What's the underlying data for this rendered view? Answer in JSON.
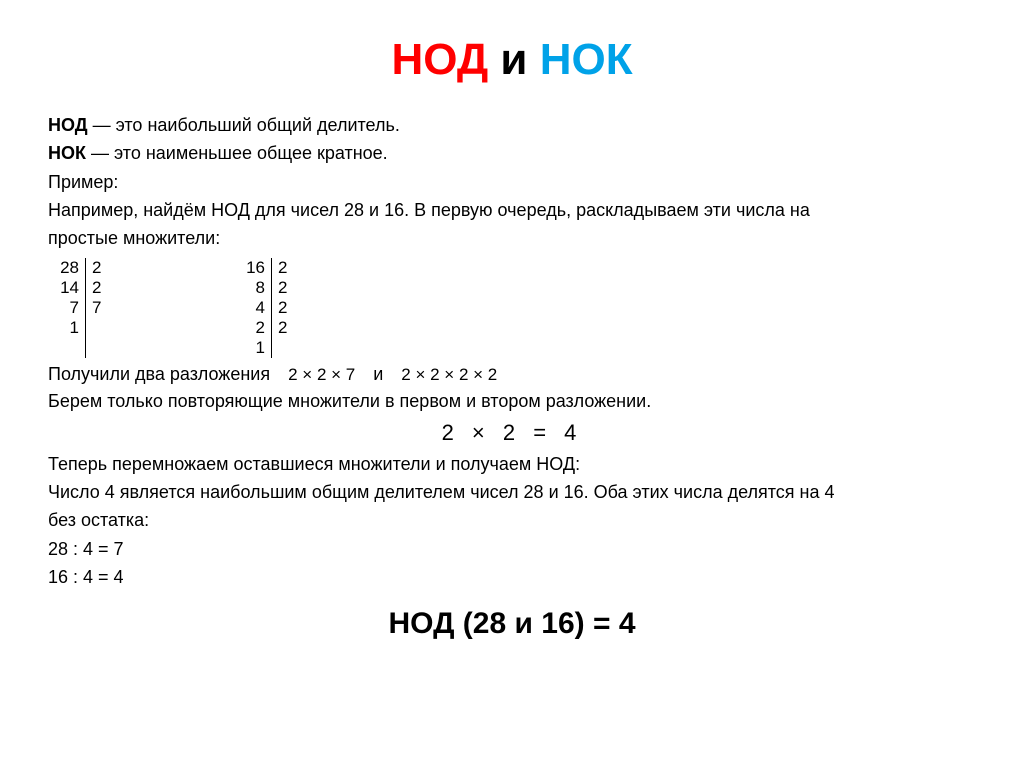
{
  "title": {
    "nod": "НОД",
    "and": " и ",
    "nok": "НОК"
  },
  "line_nod_def_b": "НОД",
  "line_nod_def": " — это наибольший общий делитель.",
  "line_nok_def_b": "НОК",
  "line_nok_def": " — это наименьшее общее кратное.",
  "line_example_label": "Пример:",
  "line_example_text1": "Например, найдём НОД для чисел 28 и 16. В первую очередь, раскладываем эти числа на",
  "line_example_text2": "простые множители:",
  "factor28": {
    "left": [
      "28",
      "14",
      "7",
      "1"
    ],
    "right": [
      "2",
      "2",
      "7",
      ""
    ]
  },
  "factor16": {
    "left": [
      "16",
      "8",
      "4",
      "2",
      "1"
    ],
    "right": [
      "2",
      "2",
      "2",
      "2",
      ""
    ]
  },
  "line_got": "Получили два разложения",
  "expr1": "2 × 2 × 7",
  "line_and": "и",
  "expr2": "2 × 2 × 2 × 2",
  "line_take": "Берем только повторяющие множители в первом и втором разложении.",
  "eq_centered": "2 × 2 = 4",
  "line_now": "Теперь перемножаем оставшиеся множители и получаем НОД:",
  "line_is1": "Число 4 является наибольшим общим делителем чисел 28 и 16. Оба этих числа делятся на 4",
  "line_is2": "без остатка:",
  "line_div1": "28 : 4 = 7",
  "line_div2": "16 : 4 = 4",
  "final": "НОД (28 и 16) = 4"
}
